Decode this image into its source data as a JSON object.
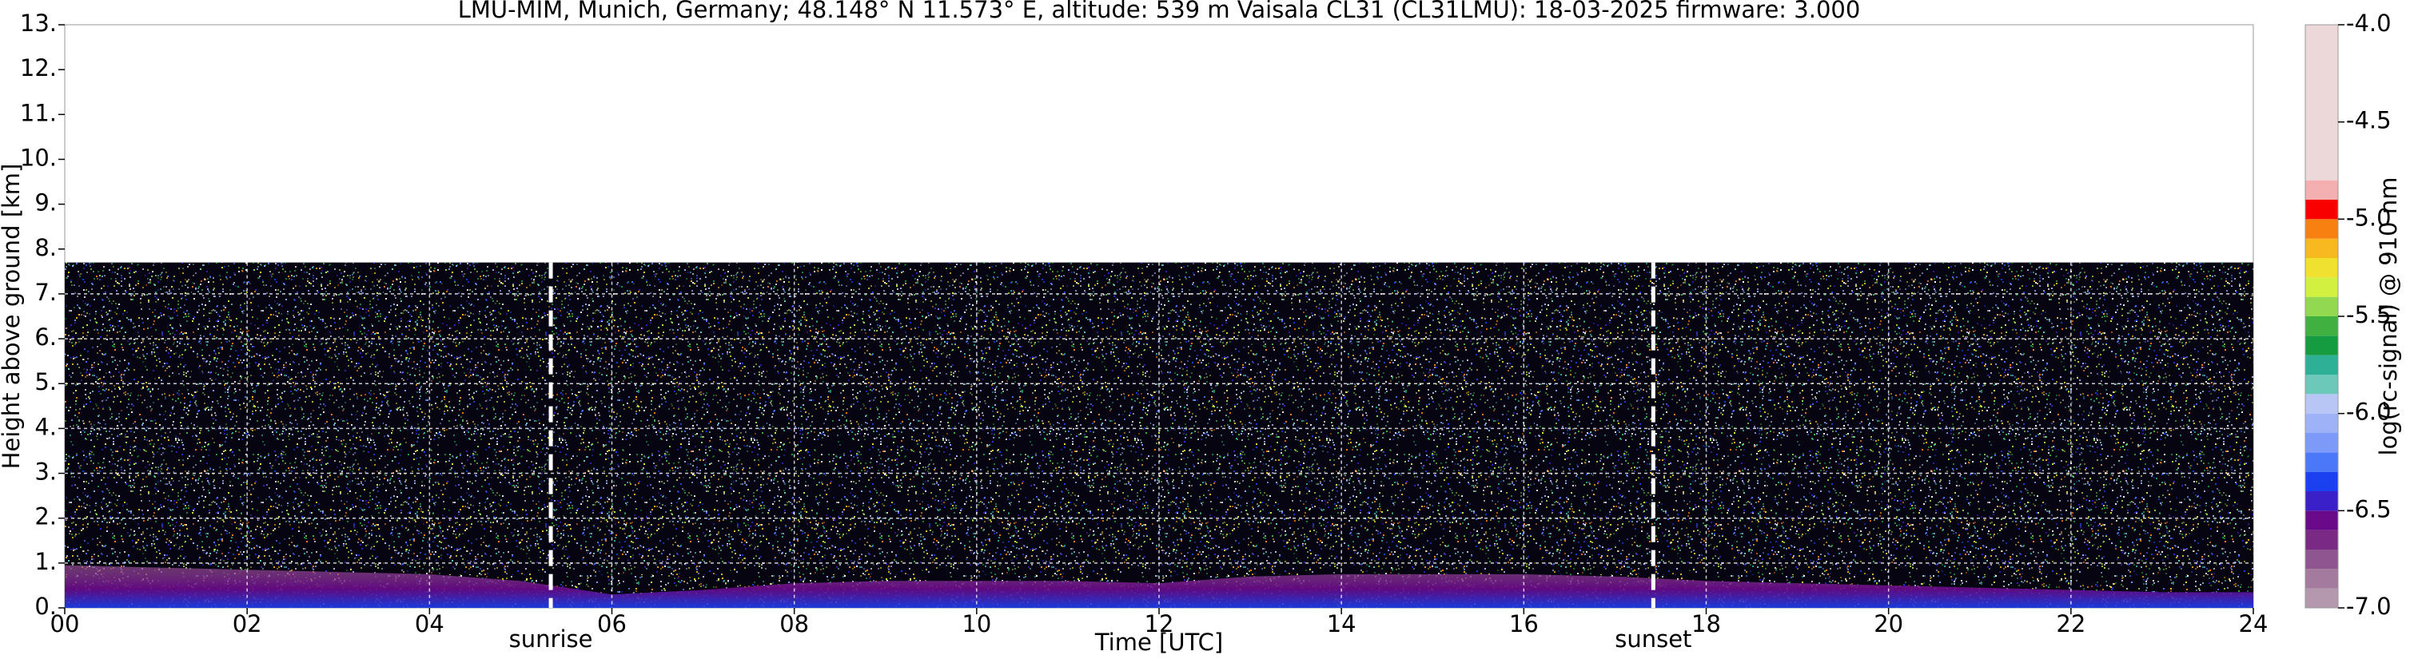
{
  "chart_data": {
    "type": "ceilometer",
    "title": "LMU-MIM, Munich, Germany; 48.148° N 11.573° E, altitude: 539 m    Vaisala CL31 (CL31LMU): 18-03-2025    firmware: 3.000",
    "x_label": "Time [UTC]",
    "y_label": "Height above ground [km]",
    "xlim": [
      0,
      24
    ],
    "xticks": [
      {
        "value": 0,
        "label": "00"
      },
      {
        "value": 2,
        "label": "02"
      },
      {
        "value": 4,
        "label": "04"
      },
      {
        "value": 6,
        "label": "06"
      },
      {
        "value": 8,
        "label": "08"
      },
      {
        "value": 10,
        "label": "10"
      },
      {
        "value": 12,
        "label": "12"
      },
      {
        "value": 14,
        "label": "14"
      },
      {
        "value": 16,
        "label": "16"
      },
      {
        "value": 18,
        "label": "18"
      },
      {
        "value": 20,
        "label": "20"
      },
      {
        "value": 22,
        "label": "22"
      },
      {
        "value": 24,
        "label": "24"
      }
    ],
    "ylim": [
      0,
      13
    ],
    "yticks": [
      {
        "value": 0,
        "label": "0."
      },
      {
        "value": 1,
        "label": "1."
      },
      {
        "value": 2,
        "label": "2."
      },
      {
        "value": 3,
        "label": "3."
      },
      {
        "value": 4,
        "label": "4."
      },
      {
        "value": 5,
        "label": "5."
      },
      {
        "value": 6,
        "label": "6."
      },
      {
        "value": 7,
        "label": "7."
      },
      {
        "value": 8,
        "label": "8."
      },
      {
        "value": 9,
        "label": "9."
      },
      {
        "value": 10,
        "label": "10."
      },
      {
        "value": 11,
        "label": "11."
      },
      {
        "value": 12,
        "label": "12."
      },
      {
        "value": 13,
        "label": "13."
      }
    ],
    "grid": true,
    "signal_top": 7.7,
    "x": [
      0,
      1,
      2,
      3,
      4,
      5,
      6,
      7,
      8,
      9,
      10,
      11,
      12,
      13,
      14,
      15,
      16,
      17,
      18,
      19,
      20,
      21,
      22,
      23,
      24
    ],
    "layer_top": [
      0.95,
      0.9,
      0.85,
      0.8,
      0.75,
      0.6,
      0.3,
      0.4,
      0.55,
      0.6,
      0.6,
      0.6,
      0.55,
      0.7,
      0.75,
      0.75,
      0.75,
      0.7,
      0.6,
      0.55,
      0.5,
      0.45,
      0.4,
      0.35,
      0.35
    ],
    "annotations": [
      {
        "text": "sunrise",
        "x": 5.33
      },
      {
        "text": "sunset",
        "x": 17.42
      }
    ],
    "colorbar": {
      "label": "log(rc-signal) @ 910 nm",
      "lim": [
        -7,
        -4
      ],
      "ticks": [
        {
          "value": -4,
          "label": "-4.0"
        },
        {
          "value": -4.5,
          "label": "-4.5"
        },
        {
          "value": -5,
          "label": "-5.0"
        },
        {
          "value": -5.5,
          "label": "-5.5"
        },
        {
          "value": -6,
          "label": "-6.0"
        },
        {
          "value": -6.5,
          "label": "-6.5"
        },
        {
          "value": -7,
          "label": "-7.0"
        }
      ],
      "bounds": [
        -7.0,
        -6.9,
        -6.8,
        -6.7,
        -6.6,
        -6.5,
        -6.4,
        -6.3,
        -6.2,
        -6.1,
        -6.0,
        -5.9,
        -5.8,
        -5.7,
        -5.6,
        -5.5,
        -5.4,
        -5.3,
        -5.2,
        -5.1,
        -5.0,
        -4.9,
        -4.8,
        -4.0
      ],
      "colors": [
        "#b498ae",
        "#a57a9f",
        "#8f5590",
        "#7a2a84",
        "#6a0a8a",
        "#3a20c8",
        "#1a40f0",
        "#4a78f8",
        "#7d9af8",
        "#9eb2f8",
        "#b8c6f6",
        "#6cc8b8",
        "#2eb096",
        "#169c40",
        "#40b040",
        "#92d850",
        "#d2f040",
        "#f0e030",
        "#f8b820",
        "#f88010",
        "#f80000",
        "#f4b0b0",
        "#ecd8d8"
      ]
    }
  }
}
